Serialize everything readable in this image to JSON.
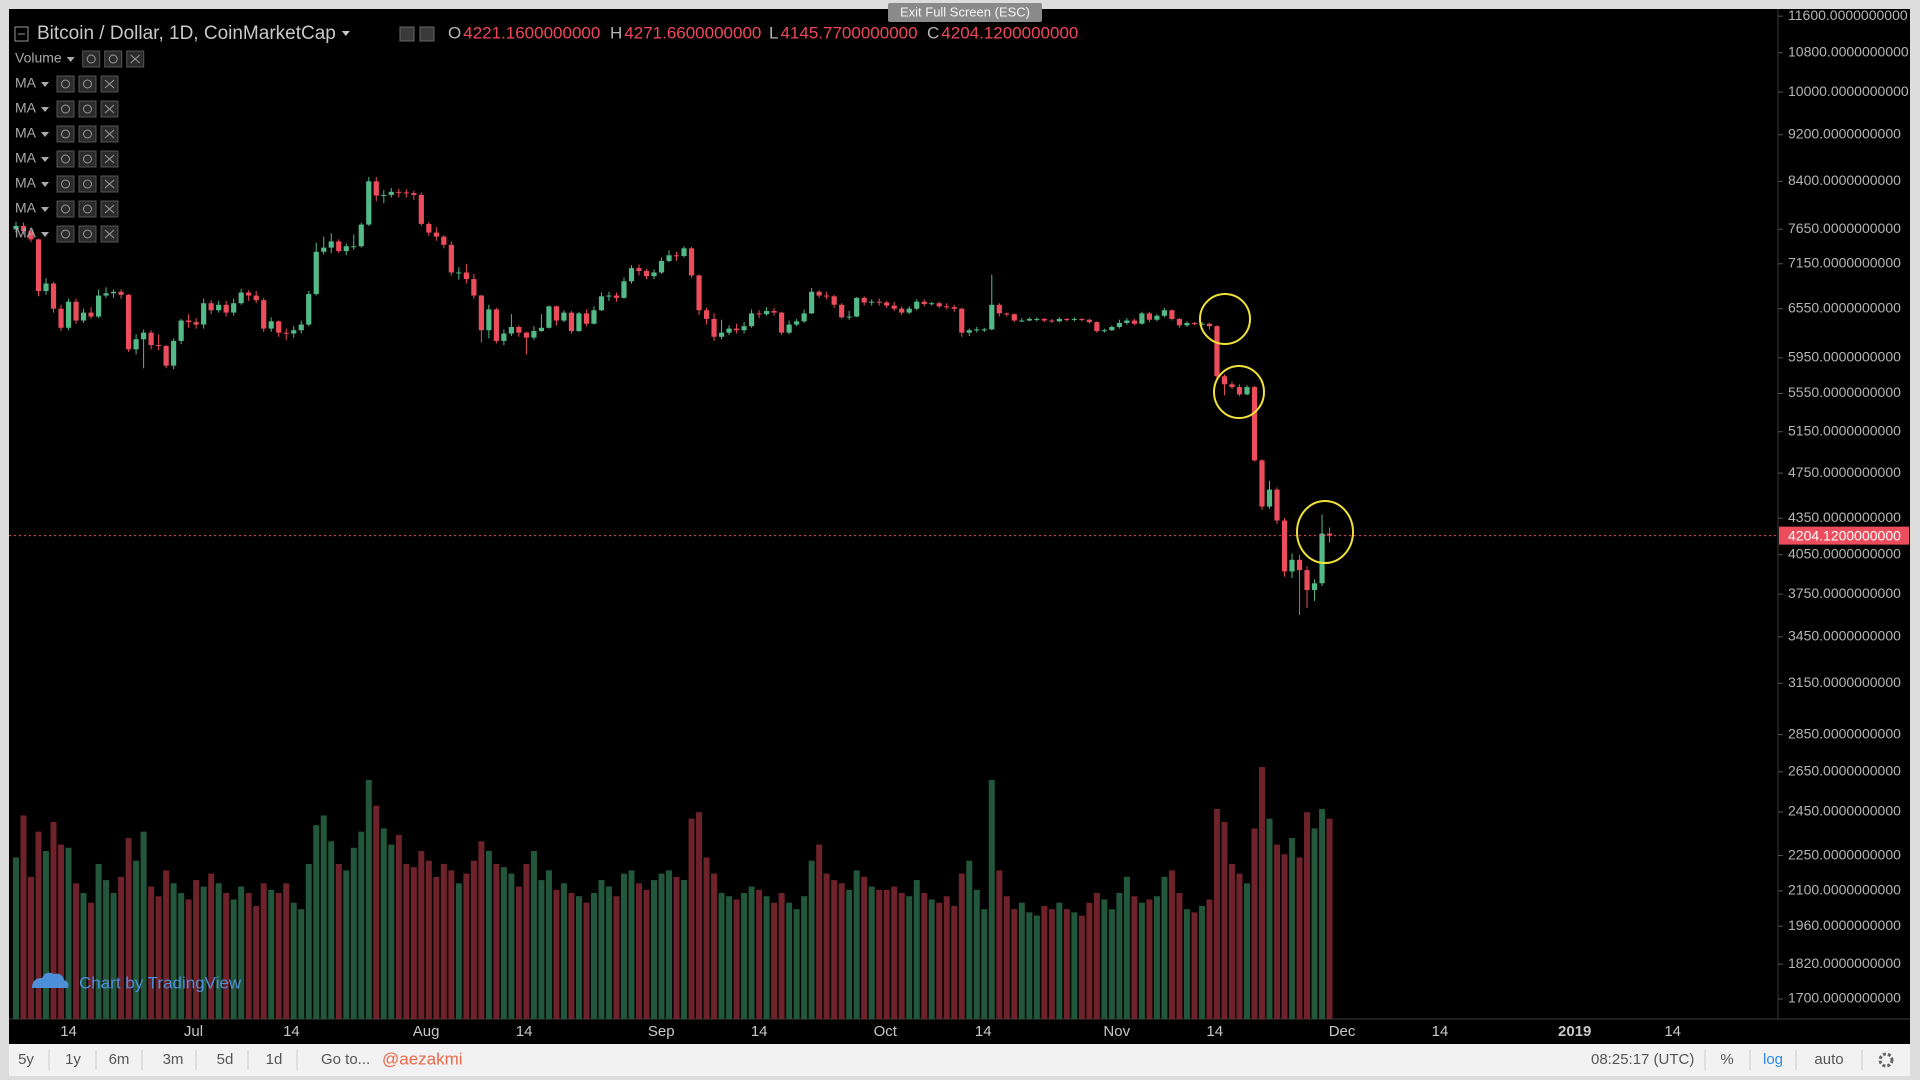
{
  "ui": {
    "fullscreen_hint": "Exit Full Screen (ESC)",
    "symbol": "Bitcoin / Dollar, 1D, CoinMarketCap",
    "ohlc_legend": [
      {
        "key": "O",
        "value": "4221.1600000000"
      },
      {
        "key": "H",
        "value": "4271.6600000000"
      },
      {
        "key": "L",
        "value": "4145.7700000000"
      },
      {
        "key": "C",
        "value": "4204.1200000000"
      }
    ],
    "indicators": [
      "Volume",
      "MA",
      "MA",
      "MA",
      "MA",
      "MA",
      "MA",
      "MA"
    ],
    "watermark": "Chart by TradingView",
    "toolbar": {
      "ranges": [
        "5y",
        "1y",
        "6m",
        "3m",
        "5d",
        "1d"
      ],
      "goto": "Go to...",
      "user": "@aezakmi",
      "time": "08:25:17 (UTC)",
      "percent": "%",
      "log": "log",
      "auto": "auto"
    }
  },
  "chart_data": {
    "type": "candlestick",
    "log_scale": true,
    "up_color": "#53b987",
    "down_color": "#eb4d5c",
    "volume_up_color": "#23573c",
    "volume_down_color": "#6e2229",
    "price_line_color": "#eb4d5c",
    "ylim": [
      1635,
      11740
    ],
    "yticks": [
      {
        "value": 11600,
        "label": "11600.0000000000"
      },
      {
        "value": 10800,
        "label": "10800.0000000000"
      },
      {
        "value": 10000,
        "label": "10000.0000000000"
      },
      {
        "value": 9200,
        "label": "9200.0000000000"
      },
      {
        "value": 8400,
        "label": "8400.0000000000"
      },
      {
        "value": 7650,
        "label": "7650.0000000000"
      },
      {
        "value": 7150,
        "label": "7150.0000000000"
      },
      {
        "value": 6550,
        "label": "6550.0000000000"
      },
      {
        "value": 5950,
        "label": "5950.0000000000"
      },
      {
        "value": 5550,
        "label": "5550.0000000000"
      },
      {
        "value": 5150,
        "label": "5150.0000000000"
      },
      {
        "value": 4750,
        "label": "4750.0000000000"
      },
      {
        "value": 4350,
        "label": "4350.0000000000"
      },
      {
        "value": 4050,
        "label": "4050.0000000000"
      },
      {
        "value": 3750,
        "label": "3750.0000000000"
      },
      {
        "value": 3450,
        "label": "3450.0000000000"
      },
      {
        "value": 3150,
        "label": "3150.0000000000"
      },
      {
        "value": 2850,
        "label": "2850.0000000000"
      },
      {
        "value": 2650,
        "label": "2650.0000000000"
      },
      {
        "value": 2450,
        "label": "2450.0000000000"
      },
      {
        "value": 2250,
        "label": "2250.0000000000"
      },
      {
        "value": 2100,
        "label": "2100.0000000000"
      },
      {
        "value": 1960,
        "label": "1960.0000000000"
      },
      {
        "value": 1820,
        "label": "1820.0000000000"
      },
      {
        "value": 1700,
        "label": "1700.0000000000"
      }
    ],
    "xtick_labels": [
      "14",
      "Jul",
      "14",
      "Aug",
      "14",
      "Sep",
      "14",
      "Oct",
      "14",
      "Nov",
      "14",
      "Dec",
      "14",
      "2019",
      "14"
    ],
    "last_price_label": "4204.1200000000",
    "open": [
      7650,
      7700,
      7620,
      7500,
      6780,
      6880,
      6550,
      6310,
      6640,
      6400,
      6500,
      6450,
      6720,
      6750,
      6770,
      6730,
      6050,
      6170,
      6250,
      6100,
      6090,
      5860,
      6150,
      6400,
      6380,
      6350,
      6620,
      6530,
      6600,
      6500,
      6620,
      6760,
      6720,
      6660,
      6300,
      6390,
      6250,
      6240,
      6280,
      6350,
      6740,
      7320,
      7380,
      7470,
      7330,
      7400,
      7400,
      7720,
      8400,
      8170,
      8180,
      8230,
      8220,
      8210,
      8180,
      7730,
      7600,
      7540,
      7420,
      7030,
      7030,
      6940,
      6720,
      6280,
      6540,
      6150,
      6240,
      6320,
      6250,
      6190,
      6270,
      6310,
      6580,
      6400,
      6500,
      6270,
      6490,
      6360,
      6530,
      6710,
      6720,
      6690,
      6910,
      7090,
      7050,
      6980,
      7030,
      7190,
      7270,
      7260,
      7370,
      6990,
      6530,
      6420,
      6200,
      6250,
      6300,
      6280,
      6330,
      6490,
      6480,
      6520,
      6500,
      6250,
      6350,
      6390,
      6490,
      6770,
      6720,
      6710,
      6600,
      6440,
      6450,
      6690,
      6630,
      6640,
      6630,
      6590,
      6550,
      6500,
      6550,
      6640,
      6610,
      6620,
      6580,
      6570,
      6550,
      6250,
      6280,
      6290,
      6290,
      6600,
      6490,
      6480,
      6400,
      6400,
      6420,
      6420,
      6400,
      6390,
      6420,
      6410,
      6420,
      6410,
      6380,
      6270,
      6280,
      6320,
      6370,
      6400,
      6360,
      6490,
      6410,
      6460,
      6530,
      6420,
      6340,
      6370,
      6360,
      6360,
      6330,
      5740,
      5650,
      5620,
      5540,
      5620,
      4870,
      4450,
      4600,
      4330,
      3920,
      4010,
      3930,
      3780,
      3830,
      4221.16
    ],
    "high": [
      7760,
      7750,
      7680,
      7510,
      6950,
      6900,
      6600,
      6680,
      6680,
      6550,
      6570,
      6800,
      6830,
      6800,
      6800,
      6740,
      6230,
      6290,
      6280,
      6230,
      6100,
      6180,
      6420,
      6480,
      6430,
      6680,
      6660,
      6650,
      6650,
      6680,
      6810,
      6790,
      6780,
      6690,
      6440,
      6400,
      6300,
      6330,
      6400,
      6780,
      7450,
      7540,
      7590,
      7500,
      7440,
      7570,
      7750,
      8470,
      8470,
      8260,
      8290,
      8280,
      8270,
      8250,
      8220,
      7760,
      7680,
      7560,
      7470,
      7100,
      7150,
      7010,
      6730,
      6600,
      6560,
      6290,
      6480,
      6340,
      6260,
      6330,
      6480,
      6590,
      6590,
      6530,
      6520,
      6510,
      6540,
      6580,
      6760,
      6770,
      6760,
      6960,
      7130,
      7140,
      7080,
      7070,
      7240,
      7340,
      7320,
      7400,
      7390,
      7000,
      6560,
      6490,
      6410,
      6340,
      6360,
      6380,
      6540,
      6530,
      6570,
      6560,
      6510,
      6400,
      6420,
      6540,
      6820,
      6790,
      6770,
      6730,
      6620,
      6520,
      6700,
      6710,
      6670,
      6680,
      6650,
      6640,
      6580,
      6580,
      6670,
      6670,
      6640,
      6640,
      6620,
      6600,
      6560,
      6300,
      6320,
      6310,
      7000,
      6620,
      6500,
      6490,
      6430,
      6440,
      6440,
      6430,
      6420,
      6440,
      6430,
      6440,
      6430,
      6420,
      6390,
      6300,
      6340,
      6410,
      6430,
      6420,
      6510,
      6510,
      6480,
      6560,
      6540,
      6430,
      6390,
      6380,
      6380,
      6370,
      6340,
      5760,
      5680,
      5650,
      5640,
      5630,
      4880,
      4680,
      4620,
      4350,
      4060,
      4050,
      3960,
      3860,
      4380,
      4271.66
    ],
    "low": [
      7600,
      7570,
      7460,
      6710,
      6730,
      6500,
      6270,
      6280,
      6360,
      6370,
      6420,
      6430,
      6690,
      6690,
      6680,
      6020,
      5990,
      5830,
      6050,
      6040,
      5830,
      5820,
      6110,
      6310,
      6300,
      6300,
      6480,
      6500,
      6450,
      6460,
      6600,
      6650,
      6620,
      6260,
      6260,
      6200,
      6160,
      6190,
      6240,
      6330,
      6720,
      7280,
      7300,
      7300,
      7270,
      7350,
      7380,
      7700,
      8080,
      8050,
      8140,
      8140,
      8140,
      8100,
      7700,
      7550,
      7480,
      7370,
      6990,
      6930,
      6880,
      6680,
      6130,
      6180,
      6120,
      6100,
      6210,
      6200,
      5990,
      6160,
      6260,
      6300,
      6340,
      6380,
      6240,
      6260,
      6330,
      6350,
      6520,
      6650,
      6640,
      6680,
      6880,
      6990,
      6940,
      6940,
      7010,
      7170,
      7190,
      7240,
      6960,
      6470,
      6350,
      6150,
      6170,
      6220,
      6240,
      6240,
      6310,
      6430,
      6460,
      6460,
      6220,
      6230,
      6330,
      6370,
      6480,
      6690,
      6670,
      6560,
      6420,
      6410,
      6440,
      6590,
      6590,
      6590,
      6560,
      6520,
      6470,
      6480,
      6530,
      6580,
      6590,
      6560,
      6540,
      6510,
      6200,
      6210,
      6250,
      6260,
      6280,
      6450,
      6450,
      6380,
      6380,
      6390,
      6390,
      6380,
      6370,
      6380,
      6390,
      6390,
      6390,
      6360,
      6250,
      6250,
      6270,
      6300,
      6350,
      6340,
      6350,
      6380,
      6390,
      6440,
      6400,
      6310,
      6320,
      6340,
      6340,
      6290,
      5720,
      5530,
      5600,
      5520,
      5530,
      4860,
      4420,
      4430,
      4300,
      3880,
      3870,
      3600,
      3650,
      3700,
      3810,
      4145.77
    ],
    "close": [
      7700,
      7620,
      7500,
      6780,
      6880,
      6550,
      6310,
      6640,
      6400,
      6500,
      6450,
      6720,
      6750,
      6770,
      6730,
      6050,
      6170,
      6250,
      6100,
      6090,
      5860,
      6150,
      6400,
      6380,
      6350,
      6620,
      6530,
      6600,
      6500,
      6620,
      6760,
      6720,
      6660,
      6300,
      6390,
      6250,
      6240,
      6280,
      6350,
      6740,
      7320,
      7380,
      7470,
      7330,
      7400,
      7400,
      7720,
      8400,
      8170,
      8180,
      8230,
      8220,
      8210,
      8180,
      7730,
      7600,
      7540,
      7420,
      7030,
      7030,
      6940,
      6720,
      6280,
      6540,
      6150,
      6240,
      6320,
      6250,
      6190,
      6270,
      6310,
      6580,
      6400,
      6500,
      6270,
      6490,
      6360,
      6530,
      6710,
      6720,
      6690,
      6910,
      7090,
      7050,
      6980,
      7030,
      7190,
      7270,
      7260,
      7370,
      6990,
      6530,
      6420,
      6200,
      6250,
      6300,
      6280,
      6330,
      6490,
      6480,
      6520,
      6500,
      6250,
      6350,
      6390,
      6490,
      6770,
      6720,
      6710,
      6600,
      6440,
      6450,
      6690,
      6630,
      6640,
      6630,
      6590,
      6550,
      6500,
      6550,
      6640,
      6610,
      6620,
      6580,
      6570,
      6550,
      6250,
      6280,
      6290,
      6290,
      6600,
      6490,
      6480,
      6400,
      6400,
      6420,
      6420,
      6400,
      6390,
      6420,
      6410,
      6420,
      6410,
      6380,
      6270,
      6280,
      6320,
      6370,
      6400,
      6360,
      6490,
      6410,
      6460,
      6530,
      6420,
      6340,
      6370,
      6360,
      6360,
      6330,
      5740,
      5650,
      5620,
      5540,
      5620,
      4870,
      4450,
      4600,
      4330,
      3920,
      4010,
      3930,
      3780,
      3830,
      4221.16,
      4204.12
    ],
    "volume": [
      5.0,
      6.3,
      4.4,
      5.8,
      5.2,
      6.1,
      5.4,
      5.3,
      4.2,
      3.9,
      3.6,
      4.8,
      4.3,
      3.9,
      4.4,
      5.6,
      4.9,
      5.8,
      4.1,
      3.8,
      4.6,
      4.2,
      3.9,
      3.7,
      4.3,
      4.1,
      4.5,
      4.2,
      3.9,
      3.7,
      4.1,
      3.9,
      3.5,
      4.2,
      4.0,
      3.9,
      4.2,
      3.6,
      3.4,
      4.8,
      6.0,
      6.3,
      5.5,
      4.8,
      4.6,
      5.3,
      5.8,
      7.4,
      6.6,
      5.9,
      5.4,
      5.7,
      4.8,
      4.7,
      5.2,
      4.9,
      4.4,
      4.8,
      4.6,
      4.2,
      4.5,
      4.9,
      5.5,
      5.2,
      4.8,
      4.7,
      4.5,
      4.1,
      4.8,
      5.2,
      4.3,
      4.6,
      4.0,
      4.2,
      3.9,
      3.8,
      3.6,
      3.9,
      4.3,
      4.1,
      3.8,
      4.5,
      4.6,
      4.2,
      4.0,
      4.3,
      4.5,
      4.6,
      4.4,
      4.3,
      6.2,
      6.4,
      5.0,
      4.5,
      3.9,
      3.8,
      3.7,
      3.9,
      4.1,
      4.0,
      3.8,
      3.6,
      3.9,
      3.6,
      3.4,
      3.8,
      4.9,
      5.4,
      4.5,
      4.3,
      4.2,
      4.0,
      4.6,
      4.4,
      4.1,
      4.0,
      4.0,
      4.1,
      3.9,
      3.8,
      4.3,
      3.9,
      3.7,
      3.6,
      3.8,
      3.5,
      4.5,
      4.9,
      4.0,
      3.4,
      7.4,
      4.6,
      3.8,
      3.4,
      3.6,
      3.3,
      3.2,
      3.5,
      3.4,
      3.6,
      3.4,
      3.3,
      3.2,
      3.6,
      3.9,
      3.7,
      3.4,
      3.9,
      4.4,
      3.8,
      3.6,
      3.7,
      3.8,
      4.4,
      4.6,
      3.9,
      3.4,
      3.3,
      3.5,
      3.7,
      6.5,
      6.1,
      4.8,
      4.5,
      4.2,
      5.9,
      7.8,
      6.2,
      5.4,
      5.1,
      5.6,
      5.0,
      6.4,
      5.9,
      6.5,
      6.2
    ]
  }
}
